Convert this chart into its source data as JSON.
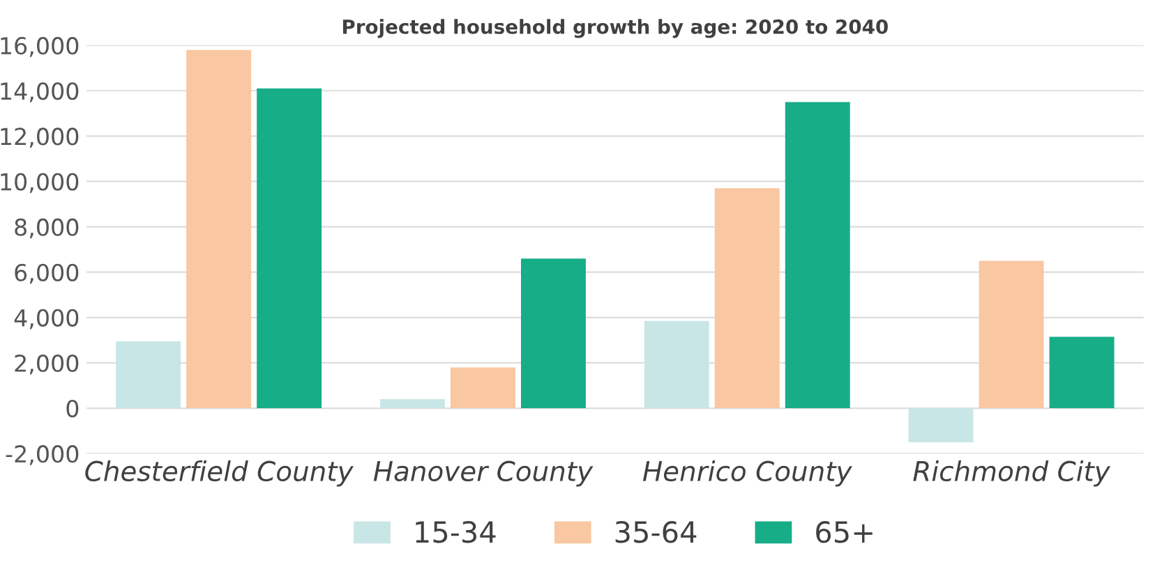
{
  "chart_data": {
    "type": "bar",
    "title": "Projected household growth by age: 2020 to 2040",
    "categories": [
      "Chesterfield County",
      "Hanover County",
      "Henrico County",
      "Richmond City"
    ],
    "series": [
      {
        "name": "15-34",
        "color": "#c9e6e6",
        "values": [
          2950,
          400,
          3850,
          -1500
        ]
      },
      {
        "name": "35-64",
        "color": "#f9c7a1",
        "values": [
          15800,
          1800,
          9700,
          6500
        ]
      },
      {
        "name": "65+",
        "color": "#17ad87",
        "values": [
          14100,
          6600,
          13500,
          3150
        ]
      }
    ],
    "ylim": [
      -2000,
      16000
    ],
    "yticks": [
      {
        "value": -2000,
        "label": "-2,000"
      },
      {
        "value": 0,
        "label": "0"
      },
      {
        "value": 2000,
        "label": "2,000"
      },
      {
        "value": 4000,
        "label": "4,000"
      },
      {
        "value": 6000,
        "label": "6,000"
      },
      {
        "value": 8000,
        "label": "8,000"
      },
      {
        "value": 10000,
        "label": "10,000"
      },
      {
        "value": 12000,
        "label": "12,000"
      },
      {
        "value": 14000,
        "label": "14,000"
      },
      {
        "value": 16000,
        "label": "16,000"
      }
    ],
    "grid": "y",
    "legend": "bottom"
  }
}
